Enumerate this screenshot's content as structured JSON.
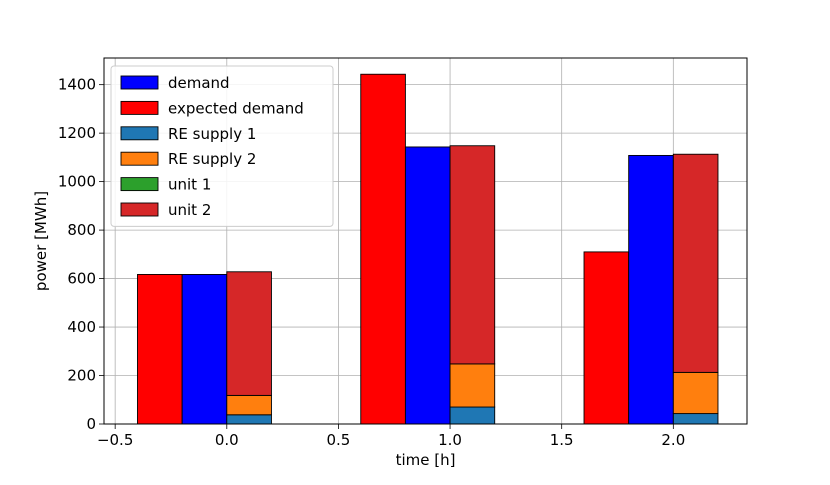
{
  "chart_data": {
    "type": "bar",
    "xlabel": "time [h]",
    "ylabel": "power [MWh]",
    "xlim": [
      -0.55,
      2.33
    ],
    "ylim": [
      0,
      1510
    ],
    "grid": true,
    "legend_position": "top-left",
    "x_ticks": [
      -0.5,
      0.0,
      0.5,
      1.0,
      1.5,
      2.0
    ],
    "x_tick_labels": [
      "−0.5",
      "0.0",
      "0.5",
      "1.0",
      "1.5",
      "2.0"
    ],
    "y_ticks": [
      0,
      200,
      400,
      600,
      800,
      1000,
      1200,
      1400
    ],
    "y_tick_labels": [
      "0",
      "200",
      "400",
      "600",
      "800",
      "1000",
      "1200",
      "1400"
    ],
    "x": [
      0.0,
      1.0,
      2.0
    ],
    "bar_width": 0.2,
    "legend": [
      "demand",
      "expected demand",
      "RE supply 1",
      "RE supply 2",
      "unit 1",
      "unit 2"
    ],
    "series": [
      {
        "name": "expected demand",
        "color": "#ff0000",
        "x_offset": -0.3,
        "values": [
          617,
          1443,
          710
        ]
      },
      {
        "name": "demand",
        "color": "#0000ff",
        "x_offset": -0.1,
        "values": [
          617,
          1143,
          1108
        ]
      },
      {
        "name": "RE supply 1",
        "color": "#1f77b4",
        "x_offset": 0.1,
        "stack": "supply",
        "values": [
          38,
          70,
          43
        ]
      },
      {
        "name": "RE supply 2",
        "color": "#ff7f0e",
        "x_offset": 0.1,
        "stack": "supply",
        "values": [
          80,
          178,
          170
        ]
      },
      {
        "name": "unit 1",
        "color": "#2ca02c",
        "x_offset": 0.1,
        "stack": "supply",
        "values": [
          0,
          0,
          0
        ]
      },
      {
        "name": "unit 2",
        "color": "#d62728",
        "x_offset": 0.1,
        "stack": "supply",
        "values": [
          510,
          900,
          900
        ]
      }
    ]
  }
}
